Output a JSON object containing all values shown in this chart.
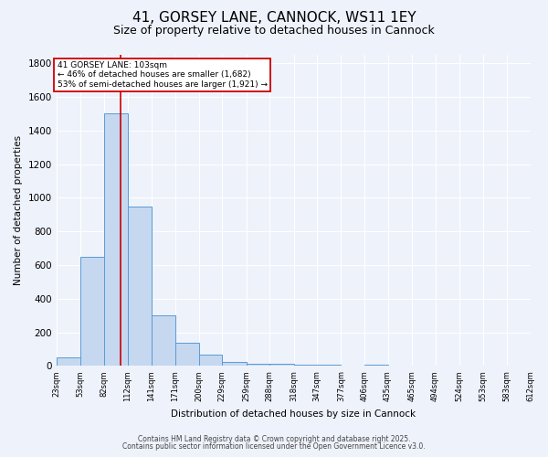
{
  "title": "41, GORSEY LANE, CANNOCK, WS11 1EY",
  "subtitle": "Size of property relative to detached houses in Cannock",
  "xlabel": "Distribution of detached houses by size in Cannock",
  "ylabel": "Number of detached properties",
  "bins": [
    23,
    53,
    82,
    112,
    141,
    171,
    200,
    229,
    259,
    288,
    318,
    347,
    377,
    406,
    435,
    465,
    494,
    524,
    553,
    583,
    612
  ],
  "counts": [
    50,
    650,
    1500,
    950,
    300,
    135,
    65,
    25,
    10,
    10,
    5,
    5,
    0,
    5,
    0,
    0,
    0,
    0,
    0,
    0
  ],
  "bar_color": "#c5d8f0",
  "bar_edgecolor": "#5b9bd5",
  "redline_x": 103,
  "annotation_title": "41 GORSEY LANE: 103sqm",
  "annotation_line1": "← 46% of detached houses are smaller (1,682)",
  "annotation_line2": "53% of semi-detached houses are larger (1,921) →",
  "annotation_box_color": "#ffffff",
  "annotation_box_edgecolor": "#cc0000",
  "redline_color": "#cc0000",
  "background_color": "#eef2fb",
  "grid_color": "#ffffff",
  "footer1": "Contains HM Land Registry data © Crown copyright and database right 2025.",
  "footer2": "Contains public sector information licensed under the Open Government Licence v3.0.",
  "ylim": [
    0,
    1850
  ],
  "title_fontsize": 11,
  "subtitle_fontsize": 9
}
